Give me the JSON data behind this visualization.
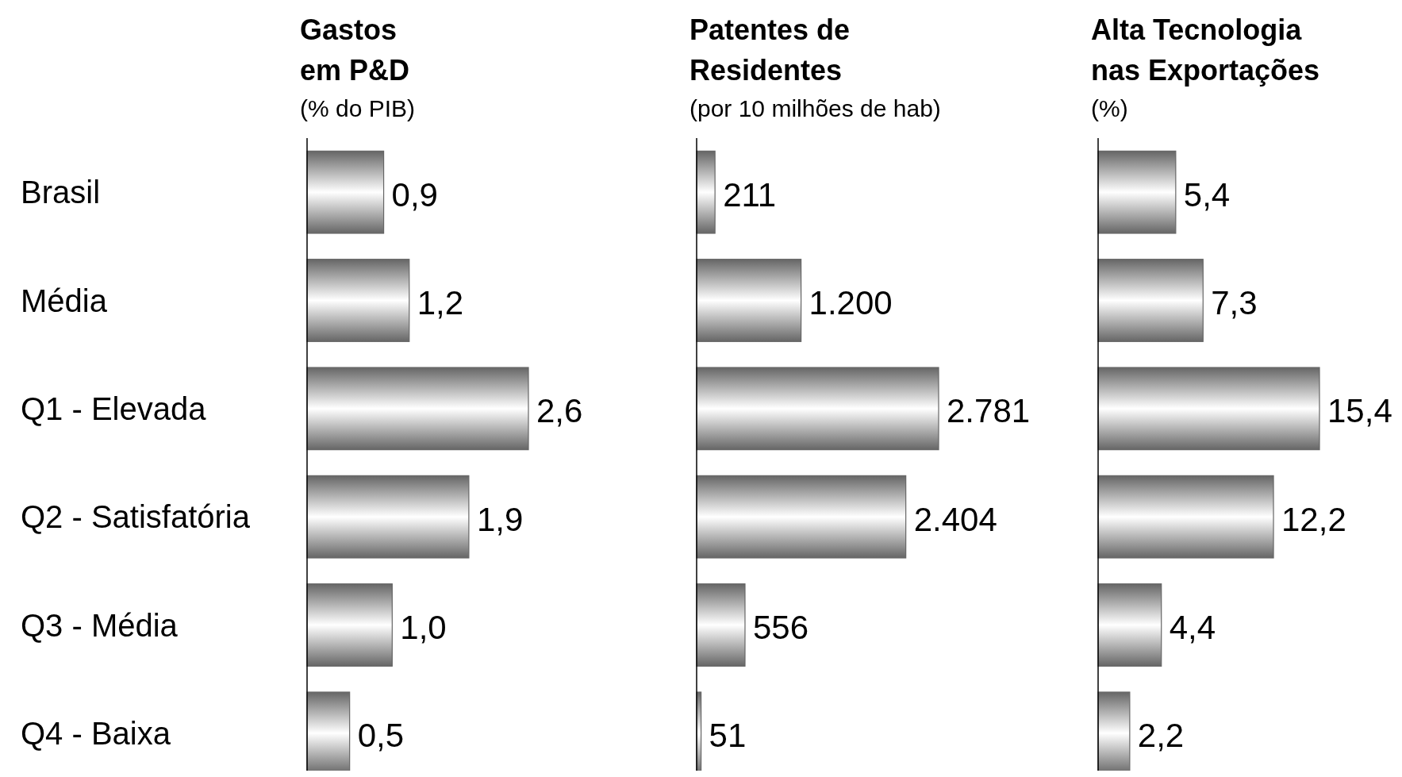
{
  "chart_data": [
    {
      "type": "bar",
      "orientation": "horizontal",
      "title": "Gastos\nem P&D",
      "subtitle": "(% do PIB)",
      "categories": [
        "Brasil",
        "Média",
        "Q1 - Elevada",
        "Q2 - Satisfatória",
        "Q3 - Média",
        "Q4 - Baixa"
      ],
      "values": [
        0.9,
        1.2,
        2.6,
        1.9,
        1.0,
        0.5
      ],
      "value_labels": [
        "0,9",
        "1,2",
        "2,6",
        "1,9",
        "1,0",
        "0,5"
      ],
      "color": "#666666",
      "tick_labels": "y",
      "grid": false
    },
    {
      "type": "bar",
      "orientation": "horizontal",
      "title": "Patentes de\nResidentes",
      "subtitle": "(por 10 milhões de hab)",
      "categories": [
        null,
        null,
        null,
        null,
        null,
        null
      ],
      "values": [
        211,
        1200,
        2781,
        2404,
        556,
        51
      ],
      "value_labels": [
        "211",
        "1.200",
        "2.781",
        "2.404",
        "556",
        "51"
      ],
      "color": "#666666",
      "tick_labels": false,
      "grid": false
    },
    {
      "type": "bar",
      "orientation": "horizontal",
      "title": "Alta Tecnologia\nnas Exportações",
      "subtitle": "(%)",
      "categories": [
        null,
        null,
        null,
        null,
        null,
        null
      ],
      "values": [
        5.4,
        7.3,
        15.4,
        12.2,
        4.4,
        2.2
      ],
      "value_labels": [
        "5,4",
        "7,3",
        "15,4",
        "12,2",
        "4,4",
        "2,2"
      ],
      "color": "#666666",
      "tick_labels": false,
      "grid": false
    }
  ]
}
